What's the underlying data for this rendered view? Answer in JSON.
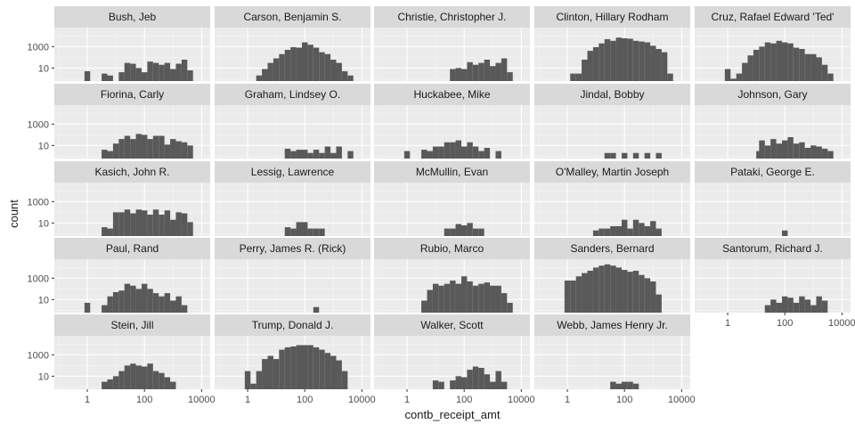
{
  "chart_data": {
    "type": "bar",
    "subtype": "faceted-histogram",
    "xlabel": "contb_receipt_amt",
    "ylabel": "count",
    "x_scale": "log10",
    "y_scale": "log10",
    "xlim": [
      0.07,
      20000
    ],
    "ylim": [
      0.6,
      60000
    ],
    "x_ticks": [
      1,
      100,
      10000
    ],
    "x_tick_labels": [
      "1",
      "100",
      "10000"
    ],
    "y_ticks": [
      10,
      1000
    ],
    "y_tick_labels": [
      "10",
      "1000"
    ],
    "grid": true,
    "panel_background": "#ebebeb",
    "strip_background": "#d9d9d9",
    "bar_color": "#595959",
    "bin_width_log10": 0.2,
    "facet_columns": 5,
    "facets": [
      {
        "name": "Bush, Jeb",
        "bins": [
          [
            -0.1,
            5
          ],
          [
            0.5,
            3
          ],
          [
            0.7,
            2
          ],
          [
            1.1,
            4
          ],
          [
            1.3,
            30
          ],
          [
            1.5,
            25
          ],
          [
            1.7,
            10
          ],
          [
            1.9,
            4
          ],
          [
            2.1,
            40
          ],
          [
            2.3,
            30
          ],
          [
            2.5,
            20
          ],
          [
            2.7,
            30
          ],
          [
            2.9,
            8
          ],
          [
            3.1,
            25
          ],
          [
            3.3,
            60
          ],
          [
            3.5,
            6
          ]
        ]
      },
      {
        "name": "Carson, Benjamin S.",
        "bins": [
          [
            0.3,
            2
          ],
          [
            0.5,
            8
          ],
          [
            0.7,
            30
          ],
          [
            0.9,
            80
          ],
          [
            1.1,
            200
          ],
          [
            1.3,
            500
          ],
          [
            1.5,
            900
          ],
          [
            1.7,
            800
          ],
          [
            1.9,
            2500
          ],
          [
            2.1,
            1500
          ],
          [
            2.3,
            800
          ],
          [
            2.5,
            300
          ],
          [
            2.7,
            200
          ],
          [
            2.9,
            60
          ],
          [
            3.1,
            30
          ],
          [
            3.3,
            5
          ],
          [
            3.5,
            2
          ]
        ]
      },
      {
        "name": "Christie, Christopher J.",
        "bins": [
          [
            1.5,
            8
          ],
          [
            1.7,
            10
          ],
          [
            1.9,
            8
          ],
          [
            2.1,
            35
          ],
          [
            2.3,
            20
          ],
          [
            2.5,
            30
          ],
          [
            2.7,
            60
          ],
          [
            2.9,
            15
          ],
          [
            3.1,
            30
          ],
          [
            3.3,
            80
          ],
          [
            3.5,
            4
          ]
        ]
      },
      {
        "name": "Clinton, Hillary Rodham",
        "bins": [
          [
            0.1,
            3
          ],
          [
            0.3,
            3
          ],
          [
            0.5,
            60
          ],
          [
            0.7,
            400
          ],
          [
            0.9,
            900
          ],
          [
            1.1,
            2000
          ],
          [
            1.3,
            5000
          ],
          [
            1.5,
            3500
          ],
          [
            1.7,
            7000
          ],
          [
            1.9,
            6000
          ],
          [
            2.1,
            5500
          ],
          [
            2.3,
            3500
          ],
          [
            2.5,
            3000
          ],
          [
            2.7,
            2500
          ],
          [
            2.9,
            1200
          ],
          [
            3.1,
            600
          ],
          [
            3.3,
            300
          ],
          [
            3.5,
            3
          ]
        ]
      },
      {
        "name": "Cruz, Rafael Edward 'Ted'",
        "bins": [
          [
            -0.1,
            8
          ],
          [
            0.1,
            1
          ],
          [
            0.3,
            3
          ],
          [
            0.5,
            30
          ],
          [
            0.7,
            150
          ],
          [
            0.9,
            500
          ],
          [
            1.1,
            1000
          ],
          [
            1.3,
            2500
          ],
          [
            1.5,
            2000
          ],
          [
            1.7,
            3500
          ],
          [
            1.9,
            2500
          ],
          [
            2.1,
            2000
          ],
          [
            2.3,
            800
          ],
          [
            2.5,
            600
          ],
          [
            2.7,
            200
          ],
          [
            2.9,
            200
          ],
          [
            3.1,
            100
          ],
          [
            3.3,
            20
          ],
          [
            3.5,
            3
          ]
        ]
      },
      {
        "name": "Fiorina, Carly",
        "bins": [
          [
            0.5,
            4
          ],
          [
            0.7,
            3
          ],
          [
            0.9,
            15
          ],
          [
            1.1,
            40
          ],
          [
            1.3,
            80
          ],
          [
            1.5,
            40
          ],
          [
            1.7,
            120
          ],
          [
            1.9,
            100
          ],
          [
            2.1,
            40
          ],
          [
            2.3,
            80
          ],
          [
            2.5,
            80
          ],
          [
            2.7,
            12
          ],
          [
            2.9,
            40
          ],
          [
            3.1,
            25
          ],
          [
            3.3,
            20
          ],
          [
            3.5,
            10
          ]
        ]
      },
      {
        "name": "Graham, Lindsey O.",
        "bins": [
          [
            1.3,
            5
          ],
          [
            1.5,
            3
          ],
          [
            1.7,
            4
          ],
          [
            1.9,
            4
          ],
          [
            2.1,
            2
          ],
          [
            2.3,
            4
          ],
          [
            2.5,
            2
          ],
          [
            2.7,
            8
          ],
          [
            2.9,
            2
          ],
          [
            3.1,
            8
          ],
          [
            3.5,
            3
          ]
        ]
      },
      {
        "name": "Huckabee, Mike",
        "bins": [
          [
            -0.1,
            3
          ],
          [
            0.5,
            4
          ],
          [
            0.7,
            3
          ],
          [
            0.9,
            8
          ],
          [
            1.1,
            8
          ],
          [
            1.3,
            20
          ],
          [
            1.5,
            20
          ],
          [
            1.7,
            30
          ],
          [
            1.9,
            8
          ],
          [
            2.1,
            20
          ],
          [
            2.3,
            8
          ],
          [
            2.5,
            3
          ],
          [
            2.7,
            6
          ],
          [
            3.1,
            3
          ]
        ]
      },
      {
        "name": "Jindal, Bobby",
        "bins": [
          [
            1.3,
            2
          ],
          [
            1.5,
            2
          ],
          [
            1.9,
            2
          ],
          [
            2.3,
            2
          ],
          [
            2.7,
            2
          ],
          [
            3.1,
            2
          ]
        ]
      },
      {
        "name": "Johnson, Gary",
        "bins": [
          [
            1.0,
            3
          ],
          [
            1.1,
            30
          ],
          [
            1.3,
            10
          ],
          [
            1.5,
            40
          ],
          [
            1.7,
            15
          ],
          [
            1.9,
            30
          ],
          [
            2.1,
            60
          ],
          [
            2.3,
            15
          ],
          [
            2.5,
            20
          ],
          [
            2.7,
            6
          ],
          [
            2.9,
            10
          ],
          [
            3.1,
            8
          ],
          [
            3.3,
            5
          ],
          [
            3.5,
            3
          ]
        ]
      },
      {
        "name": "Kasich, John R.",
        "bins": [
          [
            0.5,
            4
          ],
          [
            0.7,
            3
          ],
          [
            0.9,
            100
          ],
          [
            1.1,
            100
          ],
          [
            1.3,
            180
          ],
          [
            1.5,
            80
          ],
          [
            1.7,
            180
          ],
          [
            1.9,
            150
          ],
          [
            2.1,
            60
          ],
          [
            2.3,
            180
          ],
          [
            2.5,
            60
          ],
          [
            2.7,
            150
          ],
          [
            2.9,
            20
          ],
          [
            3.1,
            100
          ],
          [
            3.3,
            80
          ],
          [
            3.5,
            12
          ]
        ]
      },
      {
        "name": "Lessig, Lawrence",
        "bins": [
          [
            1.3,
            4
          ],
          [
            1.5,
            3
          ],
          [
            1.7,
            12
          ],
          [
            1.9,
            12
          ],
          [
            2.1,
            3
          ],
          [
            2.3,
            3
          ],
          [
            2.5,
            3
          ]
        ]
      },
      {
        "name": "McMullin, Evan",
        "bins": [
          [
            1.3,
            3
          ],
          [
            1.5,
            3
          ],
          [
            1.7,
            8
          ],
          [
            1.9,
            6
          ],
          [
            2.1,
            10
          ],
          [
            2.3,
            3
          ],
          [
            2.5,
            3
          ]
        ]
      },
      {
        "name": "O'Malley, Martin Joseph",
        "bins": [
          [
            0.9,
            2
          ],
          [
            1.1,
            3
          ],
          [
            1.3,
            3
          ],
          [
            1.5,
            5
          ],
          [
            1.7,
            5
          ],
          [
            1.9,
            20
          ],
          [
            2.1,
            3
          ],
          [
            2.3,
            20
          ],
          [
            2.5,
            10
          ],
          [
            2.7,
            5
          ],
          [
            2.9,
            15
          ],
          [
            3.1,
            3
          ]
        ]
      },
      {
        "name": "Pataki, George E.",
        "bins": [
          [
            1.9,
            2
          ]
        ]
      },
      {
        "name": "Paul, Rand",
        "bins": [
          [
            -0.1,
            5
          ],
          [
            0.5,
            3
          ],
          [
            0.7,
            20
          ],
          [
            0.9,
            50
          ],
          [
            1.1,
            70
          ],
          [
            1.3,
            300
          ],
          [
            1.5,
            200
          ],
          [
            1.7,
            100
          ],
          [
            1.9,
            300
          ],
          [
            2.1,
            100
          ],
          [
            2.3,
            40
          ],
          [
            2.5,
            20
          ],
          [
            2.7,
            40
          ],
          [
            2.9,
            8
          ],
          [
            3.1,
            20
          ],
          [
            3.3,
            3
          ]
        ]
      },
      {
        "name": "Perry, James R. (Rick)",
        "bins": [
          [
            2.3,
            2
          ]
        ]
      },
      {
        "name": "Rubio, Marco",
        "bins": [
          [
            0.5,
            8
          ],
          [
            0.7,
            80
          ],
          [
            0.9,
            300
          ],
          [
            1.1,
            200
          ],
          [
            1.3,
            300
          ],
          [
            1.5,
            600
          ],
          [
            1.7,
            300
          ],
          [
            1.9,
            1500
          ],
          [
            2.1,
            500
          ],
          [
            2.3,
            200
          ],
          [
            2.5,
            300
          ],
          [
            2.7,
            400
          ],
          [
            2.9,
            200
          ],
          [
            3.1,
            200
          ],
          [
            3.3,
            40
          ],
          [
            3.5,
            5
          ]
        ]
      },
      {
        "name": "Sanders, Bernard",
        "bins": [
          [
            -0.1,
            600
          ],
          [
            0.1,
            600
          ],
          [
            0.3,
            1500
          ],
          [
            0.5,
            3000
          ],
          [
            0.7,
            5000
          ],
          [
            0.9,
            10000
          ],
          [
            1.1,
            15000
          ],
          [
            1.3,
            20000
          ],
          [
            1.5,
            15000
          ],
          [
            1.7,
            10000
          ],
          [
            1.9,
            6000
          ],
          [
            2.1,
            4000
          ],
          [
            2.3,
            5000
          ],
          [
            2.5,
            2000
          ],
          [
            2.7,
            1000
          ],
          [
            2.9,
            500
          ],
          [
            3.1,
            30
          ]
        ]
      },
      {
        "name": "Santorum, Richard J.",
        "bins": [
          [
            1.3,
            3
          ],
          [
            1.5,
            10
          ],
          [
            1.7,
            5
          ],
          [
            1.9,
            20
          ],
          [
            2.1,
            15
          ],
          [
            2.3,
            5
          ],
          [
            2.5,
            20
          ],
          [
            2.7,
            10
          ],
          [
            2.9,
            3
          ],
          [
            3.1,
            20
          ],
          [
            3.3,
            8
          ]
        ]
      },
      {
        "name": "Stein, Jill",
        "bins": [
          [
            0.5,
            3
          ],
          [
            0.7,
            5
          ],
          [
            0.9,
            10
          ],
          [
            1.1,
            30
          ],
          [
            1.3,
            100
          ],
          [
            1.5,
            150
          ],
          [
            1.7,
            100
          ],
          [
            1.9,
            80
          ],
          [
            2.1,
            150
          ],
          [
            2.3,
            30
          ],
          [
            2.5,
            20
          ],
          [
            2.7,
            8
          ],
          [
            2.9,
            3
          ]
        ]
      },
      {
        "name": "Trump, Donald J.",
        "bins": [
          [
            -0.1,
            30
          ],
          [
            0.1,
            2
          ],
          [
            0.3,
            30
          ],
          [
            0.5,
            400
          ],
          [
            0.7,
            800
          ],
          [
            0.9,
            400
          ],
          [
            1.1,
            3000
          ],
          [
            1.3,
            5000
          ],
          [
            1.5,
            6000
          ],
          [
            1.7,
            8000
          ],
          [
            1.9,
            8000
          ],
          [
            2.1,
            8000
          ],
          [
            2.3,
            5000
          ],
          [
            2.5,
            3000
          ],
          [
            2.7,
            1500
          ],
          [
            2.9,
            800
          ],
          [
            3.1,
            300
          ],
          [
            3.3,
            30
          ]
        ]
      },
      {
        "name": "Walker, Scott",
        "bins": [
          [
            0.9,
            4
          ],
          [
            1.1,
            3
          ],
          [
            1.5,
            4
          ],
          [
            1.7,
            10
          ],
          [
            1.9,
            8
          ],
          [
            2.1,
            40
          ],
          [
            2.3,
            80
          ],
          [
            2.5,
            60
          ],
          [
            2.7,
            15
          ],
          [
            2.9,
            3
          ],
          [
            3.1,
            30
          ],
          [
            3.3,
            3
          ]
        ]
      },
      {
        "name": "Webb, James Henry Jr.",
        "bins": [
          [
            1.5,
            3
          ],
          [
            1.7,
            2
          ],
          [
            1.9,
            3
          ],
          [
            2.1,
            3
          ],
          [
            2.3,
            2
          ]
        ]
      }
    ]
  }
}
